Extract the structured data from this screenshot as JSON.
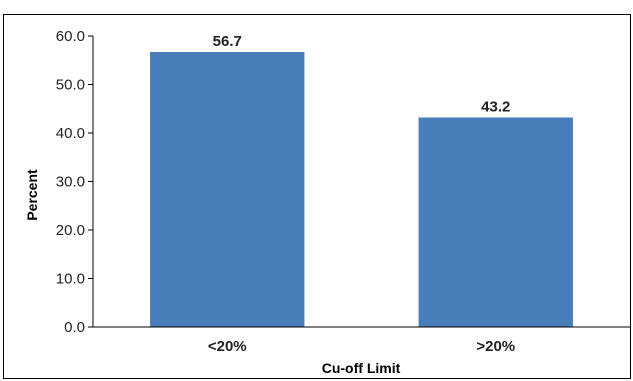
{
  "chart_data": {
    "type": "bar",
    "categories": [
      "<20%",
      ">20%"
    ],
    "values": [
      56.7,
      43.2
    ],
    "data_labels": [
      "56.7",
      "43.2"
    ],
    "title": "",
    "xlabel": "Cu-off Limit",
    "ylabel": "Percent",
    "ylim": [
      0,
      60
    ],
    "yticks": [
      "0.0",
      "10.0",
      "20.0",
      "30.0",
      "40.0",
      "50.0",
      "60.0"
    ],
    "grid": false,
    "legend": "none",
    "bar_color": "#4A7EBB"
  }
}
